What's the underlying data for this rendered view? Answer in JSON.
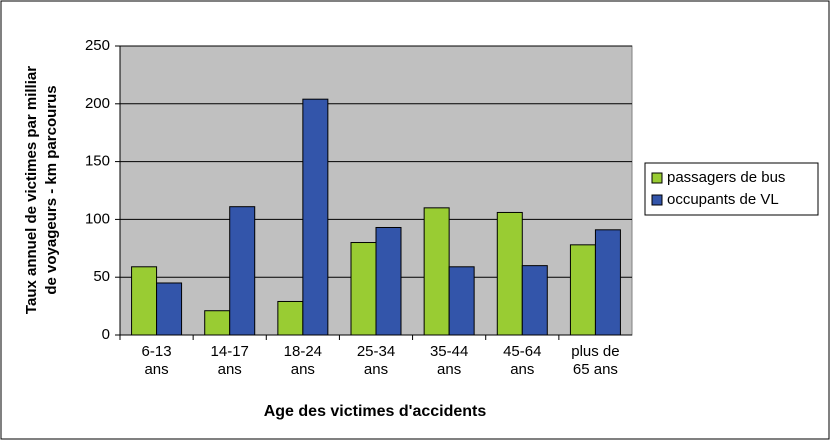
{
  "chart_data": {
    "type": "bar",
    "y_label": [
      "Taux annuel de victimes par milliar",
      "de voyageurs - km parcourus"
    ],
    "x_label": "Age des victimes d'accidents",
    "categories": [
      "6-13 ans",
      "14-17 ans",
      "18-24 ans",
      "25-34 ans",
      "35-44 ans",
      "45-64 ans",
      "plus de 65 ans"
    ],
    "series": [
      {
        "name": "passagers de bus",
        "color": "#99cc33",
        "values": [
          59,
          21,
          29,
          80,
          110,
          106,
          78
        ]
      },
      {
        "name": "occupants de VL",
        "color": "#3355aa",
        "values": [
          45,
          111,
          204,
          93,
          59,
          60,
          91
        ]
      }
    ],
    "ylim": [
      0,
      250
    ],
    "yticks": [
      0,
      50,
      100,
      150,
      200,
      250
    ],
    "grid": true,
    "legend": "right"
  }
}
